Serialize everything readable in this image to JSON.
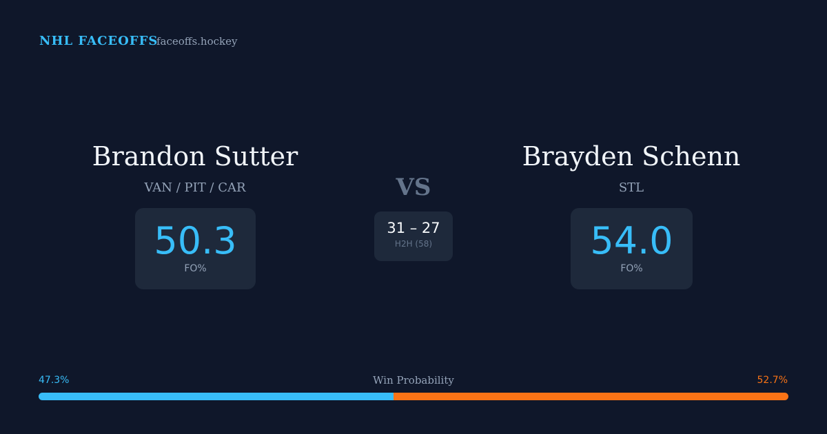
{
  "header": {
    "brand": "NHL FACEOFFS",
    "site": "faceoffs.hockey"
  },
  "players": [
    {
      "name": "Brandon Sutter",
      "teams": "VAN / PIT / CAR",
      "stat": "50.3",
      "stat_label": "FO%"
    },
    {
      "name": "Brayden Schenn",
      "teams": "STL",
      "stat": "54.0",
      "stat_label": "FO%"
    }
  ],
  "versus": "VS",
  "head_to_head": {
    "score": "31 – 27",
    "label": "H2H (58)"
  },
  "win_probability": {
    "title": "Win Probability",
    "left": {
      "value": 47.3,
      "label": "47.3%",
      "color": "#38bdf8"
    },
    "right": {
      "value": 52.7,
      "label": "52.7%",
      "color": "#f97316"
    }
  }
}
